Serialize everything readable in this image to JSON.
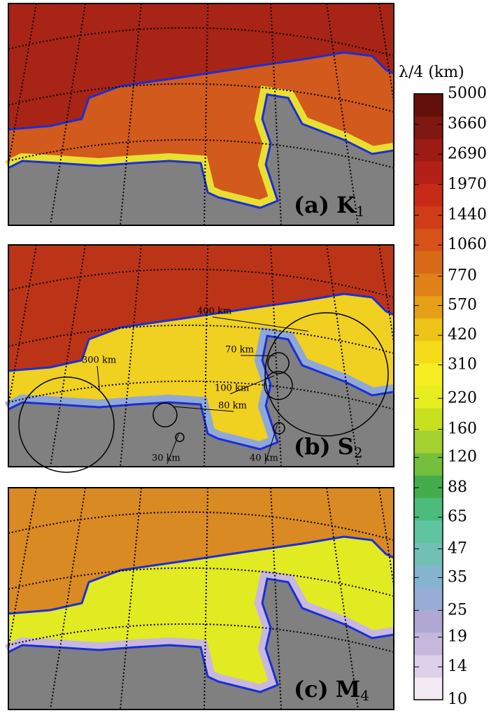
{
  "chart_data": {
    "type": "colormap-panels",
    "colorbar_title": "λ/4 (km)",
    "colorbar": {
      "ylim": [
        10,
        5000
      ],
      "log": true,
      "yticks": [
        5000,
        3660,
        2690,
        1970,
        1440,
        1060,
        770,
        570,
        420,
        310,
        220,
        160,
        120,
        88,
        65,
        47,
        35,
        25,
        19,
        14,
        10
      ],
      "colors": [
        "#f4eaf4",
        "#ddd0e8",
        "#c6b8dc",
        "#b0a8d4",
        "#98acd8",
        "#84b4d0",
        "#72c0b4",
        "#60c4a0",
        "#4cbc7c",
        "#44ac4c",
        "#74c03c",
        "#a4d030",
        "#c8e020",
        "#e6ee20",
        "#f6ee20",
        "#f6dc18",
        "#eec418",
        "#e6a018",
        "#de8218",
        "#d86a18",
        "#d65218",
        "#d03c18",
        "#c82a18",
        "#b42018",
        "#9c1c14",
        "#7e1810",
        "#621008"
      ]
    },
    "panels": [
      {
        "label": "(a)",
        "constituent": "K",
        "subscript": "1"
      },
      {
        "label": "(b)",
        "constituent": "S",
        "subscript": "2",
        "annotations": [
          "300 km",
          "80 km",
          "30 km",
          "400 km",
          "70 km",
          "100 km",
          "40 km"
        ]
      },
      {
        "label": "(c)",
        "constituent": "M",
        "subscript": "4"
      }
    ]
  }
}
